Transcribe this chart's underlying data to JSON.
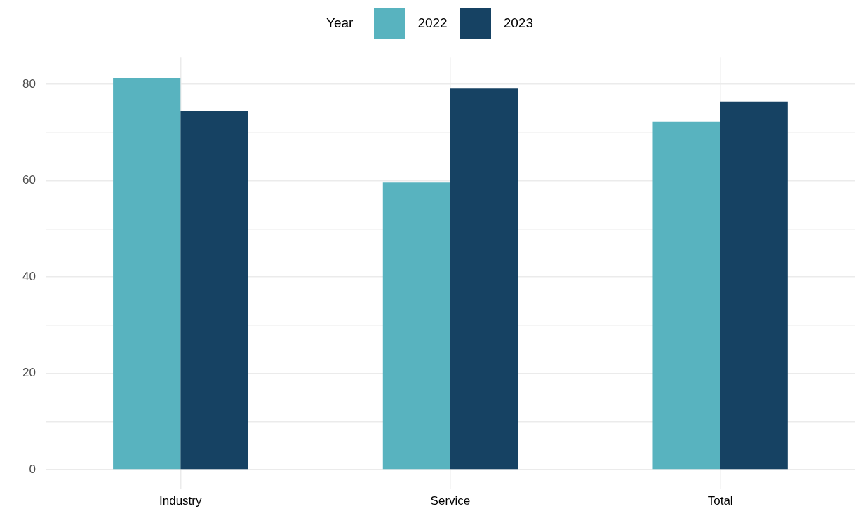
{
  "chart_data": {
    "type": "bar",
    "legend_title": "Year",
    "categories": [
      "Industry",
      "Service",
      "Total"
    ],
    "series": [
      {
        "name": "2022",
        "color": "#58b3bf",
        "values": [
          81.3,
          59.6,
          72.2
        ]
      },
      {
        "name": "2023",
        "color": "#164263",
        "values": [
          74.4,
          79.1,
          76.4
        ]
      }
    ],
    "ylim": [
      -4,
      85.5
    ],
    "yticks": [
      0,
      {
        "value": 10,
        "label": null
      },
      20,
      {
        "value": 30,
        "label": null
      },
      40,
      {
        "value": 50,
        "label": null
      },
      60,
      {
        "value": 70,
        "label": null
      },
      80
    ],
    "grid": true,
    "legend": "top"
  }
}
